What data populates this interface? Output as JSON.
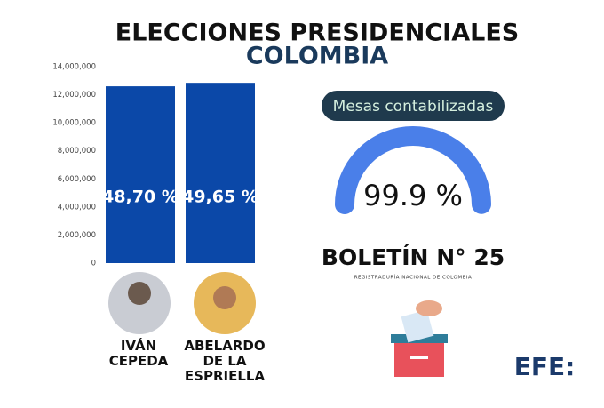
{
  "header": {
    "title": "ELECCIONES PRESIDENCIALES",
    "subtitle": "COLOMBIA"
  },
  "chart_data": [
    {
      "type": "bar",
      "categories": [
        "IVÁN CEPEDA",
        "ABELARDO DE LA ESPRIELLA"
      ],
      "values": [
        12600000,
        12850000
      ],
      "percent_values": [
        48.7,
        49.65
      ],
      "percent_labels": [
        "48,70 %",
        "49,65 %"
      ],
      "color": "#0b48a8",
      "ylim": [
        0,
        14000000
      ],
      "yticks": [
        0,
        {
          "value": 2000000,
          "label": "2,000,000"
        },
        {
          "value": 4000000,
          "label": "4,000,000"
        },
        {
          "value": 6000000,
          "label": "6,000,000"
        },
        {
          "value": 8000000,
          "label": "8,000,000"
        },
        {
          "value": 10000000,
          "label": "10,000,000"
        },
        {
          "value": 12000000,
          "label": "12,000,000"
        },
        {
          "value": 14000000,
          "label": "14,000,000"
        }
      ],
      "grid": false
    },
    {
      "type": "gauge",
      "title": "Mesas contabilizadas",
      "value": 99.9,
      "value_label": "99.9 %",
      "range": [
        0,
        100
      ],
      "color": "#4a7fe9"
    }
  ],
  "bulletin": "BOLETÍN N° 25",
  "source": "REGISTRADURÍA NACIONAL DE COLOMBIA",
  "logo": "EFE:"
}
